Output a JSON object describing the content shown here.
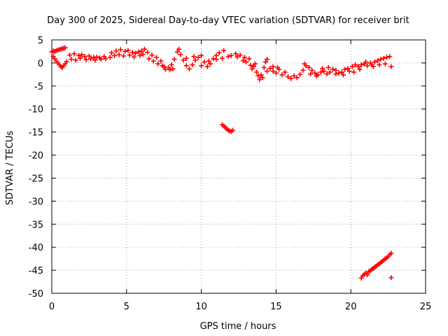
{
  "chart_data": {
    "type": "scatter",
    "title": "Day 300 of 2025, Sidereal Day-to-day VTEC variation (SDTVAR) for receiver brit",
    "xlabel": "GPS time / hours",
    "ylabel": "SDTVAR / TECUs",
    "xlim": [
      0,
      25
    ],
    "ylim": [
      -50,
      5
    ],
    "x_ticks": [
      "0",
      "5",
      "10",
      "15",
      "20",
      "25"
    ],
    "y_ticks": [
      "5",
      "0",
      "-5",
      "-10",
      "-15",
      "-20",
      "-25",
      "-30",
      "-35",
      "-40",
      "-45",
      "-50"
    ],
    "grid": true,
    "marker": "+",
    "series_color": "#ff0000",
    "series": [
      {
        "points": [
          [
            0.0,
            2.4
          ],
          [
            0.1,
            2.6
          ],
          [
            0.2,
            2.5
          ],
          [
            0.3,
            2.7
          ],
          [
            0.4,
            2.8
          ],
          [
            0.5,
            2.9
          ],
          [
            0.6,
            3.0
          ],
          [
            0.7,
            3.1
          ],
          [
            0.8,
            3.2
          ],
          [
            0.9,
            3.3
          ],
          [
            0.1,
            1.4
          ],
          [
            0.2,
            0.9
          ],
          [
            0.3,
            0.4
          ],
          [
            0.4,
            0.0
          ],
          [
            0.5,
            -0.4
          ],
          [
            0.6,
            -0.8
          ],
          [
            0.7,
            -1.0
          ],
          [
            0.8,
            -0.6
          ],
          [
            0.9,
            -0.2
          ],
          [
            1.0,
            0.3
          ],
          [
            1.2,
            1.7
          ],
          [
            1.5,
            2.0
          ],
          [
            1.8,
            1.6
          ],
          [
            2.0,
            1.8
          ],
          [
            2.2,
            1.4
          ],
          [
            2.5,
            1.5
          ],
          [
            2.8,
            1.2
          ],
          [
            3.0,
            1.3
          ],
          [
            3.2,
            1.1
          ],
          [
            3.5,
            1.4
          ],
          [
            1.3,
            0.8
          ],
          [
            1.6,
            0.6
          ],
          [
            1.9,
            1.0
          ],
          [
            2.3,
            0.7
          ],
          [
            2.6,
            0.9
          ],
          [
            2.9,
            0.6
          ],
          [
            3.3,
            0.8
          ],
          [
            3.6,
            0.9
          ],
          [
            3.9,
            1.2
          ],
          [
            4.2,
            1.6
          ],
          [
            4.0,
            2.2
          ],
          [
            4.3,
            2.6
          ],
          [
            4.6,
            2.9
          ],
          [
            4.9,
            2.5
          ],
          [
            5.1,
            2.7
          ],
          [
            5.4,
            2.3
          ],
          [
            5.6,
            2.1
          ],
          [
            5.8,
            2.4
          ],
          [
            6.0,
            2.6
          ],
          [
            6.2,
            3.0
          ],
          [
            4.5,
            1.8
          ],
          [
            4.8,
            1.5
          ],
          [
            5.2,
            1.7
          ],
          [
            5.5,
            1.3
          ],
          [
            5.9,
            1.6
          ],
          [
            6.1,
            1.9
          ],
          [
            6.4,
            2.3
          ],
          [
            6.7,
            1.7
          ],
          [
            7.0,
            1.2
          ],
          [
            7.3,
            0.4
          ],
          [
            6.5,
            0.9
          ],
          [
            6.8,
            0.4
          ],
          [
            7.1,
            -0.2
          ],
          [
            7.4,
            -0.6
          ],
          [
            7.6,
            -1.4
          ],
          [
            7.8,
            -1.0
          ],
          [
            8.0,
            -0.4
          ],
          [
            8.2,
            0.8
          ],
          [
            8.4,
            2.4
          ],
          [
            8.5,
            3.0
          ],
          [
            7.5,
            -0.8
          ],
          [
            7.9,
            -1.5
          ],
          [
            8.1,
            -1.3
          ],
          [
            8.6,
            1.8
          ],
          [
            8.8,
            0.6
          ],
          [
            9.0,
            -0.6
          ],
          [
            9.2,
            -1.3
          ],
          [
            9.4,
            -0.4
          ],
          [
            9.6,
            0.6
          ],
          [
            9.8,
            1.2
          ],
          [
            9.0,
            1.0
          ],
          [
            9.5,
            1.4
          ],
          [
            10.0,
            1.6
          ],
          [
            10.2,
            0.2
          ],
          [
            10.4,
            -0.8
          ],
          [
            10.6,
            -0.2
          ],
          [
            10.8,
            0.9
          ],
          [
            11.0,
            1.6
          ],
          [
            11.2,
            2.2
          ],
          [
            11.5,
            2.7
          ],
          [
            10.0,
            -0.6
          ],
          [
            10.5,
            0.4
          ],
          [
            11.0,
            0.8
          ],
          [
            11.4,
            1.0
          ],
          [
            11.8,
            1.4
          ],
          [
            12.0,
            1.6
          ],
          [
            12.3,
            2.0
          ],
          [
            12.6,
            1.7
          ],
          [
            12.9,
            1.2
          ],
          [
            13.2,
            0.9
          ],
          [
            12.4,
            1.3
          ],
          [
            12.8,
            0.5
          ],
          [
            13.0,
            0.2
          ],
          [
            13.3,
            -0.5
          ],
          [
            13.5,
            -0.8
          ],
          [
            13.6,
            -0.2
          ],
          [
            13.4,
            -1.3
          ],
          [
            13.7,
            -2.0
          ],
          [
            13.8,
            -2.8
          ],
          [
            13.9,
            -3.6
          ],
          [
            14.0,
            -2.6
          ],
          [
            14.2,
            -1.0
          ],
          [
            14.3,
            0.2
          ],
          [
            14.4,
            0.8
          ],
          [
            14.1,
            -3.2
          ],
          [
            14.4,
            -1.8
          ],
          [
            14.6,
            -1.2
          ],
          [
            14.8,
            -1.8
          ],
          [
            15.0,
            -2.2
          ],
          [
            15.2,
            -1.4
          ],
          [
            14.8,
            -0.8
          ],
          [
            15.1,
            -1.0
          ],
          [
            15.4,
            -2.6
          ],
          [
            15.6,
            -2.0
          ],
          [
            15.8,
            -3.0
          ],
          [
            16.0,
            -3.4
          ],
          [
            16.2,
            -2.8
          ],
          [
            16.4,
            -3.2
          ],
          [
            16.6,
            -2.5
          ],
          [
            16.8,
            -1.6
          ],
          [
            16.9,
            -0.2
          ],
          [
            17.0,
            -0.6
          ],
          [
            17.2,
            -1.0
          ],
          [
            17.4,
            -1.6
          ],
          [
            17.6,
            -2.2
          ],
          [
            17.8,
            -2.6
          ],
          [
            18.0,
            -2.0
          ],
          [
            18.2,
            -1.8
          ],
          [
            18.4,
            -2.4
          ],
          [
            18.6,
            -2.0
          ],
          [
            17.3,
            -2.4
          ],
          [
            17.7,
            -2.8
          ],
          [
            18.1,
            -1.2
          ],
          [
            18.5,
            -1.0
          ],
          [
            18.8,
            -1.4
          ],
          [
            19.0,
            -1.6
          ],
          [
            19.2,
            -2.2
          ],
          [
            19.4,
            -2.0
          ],
          [
            19.6,
            -1.4
          ],
          [
            19.8,
            -1.2
          ],
          [
            19.0,
            -2.4
          ],
          [
            19.5,
            -2.6
          ],
          [
            19.9,
            -1.8
          ],
          [
            20.1,
            -0.8
          ],
          [
            20.3,
            -0.4
          ],
          [
            20.5,
            -0.8
          ],
          [
            20.7,
            -0.4
          ],
          [
            20.9,
            -0.2
          ],
          [
            21.1,
            -0.6
          ],
          [
            21.3,
            0.0
          ],
          [
            20.2,
            -2.0
          ],
          [
            20.6,
            -1.4
          ],
          [
            21.0,
            0.2
          ],
          [
            21.4,
            -0.4
          ],
          [
            21.6,
            0.2
          ],
          [
            21.8,
            0.5
          ],
          [
            22.0,
            0.8
          ],
          [
            22.2,
            1.0
          ],
          [
            22.4,
            1.2
          ],
          [
            22.6,
            1.4
          ],
          [
            21.5,
            -0.8
          ],
          [
            21.9,
            -0.4
          ],
          [
            22.3,
            -0.2
          ],
          [
            22.7,
            -0.8
          ],
          [
            11.4,
            -13.4
          ],
          [
            11.5,
            -13.7
          ],
          [
            11.6,
            -14.0
          ],
          [
            11.7,
            -14.3
          ],
          [
            11.8,
            -14.6
          ],
          [
            11.9,
            -14.8
          ],
          [
            12.0,
            -14.9
          ],
          [
            12.1,
            -14.6
          ],
          [
            20.7,
            -46.7
          ],
          [
            20.8,
            -46.2
          ],
          [
            20.9,
            -45.9
          ],
          [
            21.0,
            -45.6
          ],
          [
            21.1,
            -46.0
          ],
          [
            21.2,
            -45.3
          ],
          [
            21.3,
            -45.1
          ],
          [
            21.4,
            -44.8
          ],
          [
            21.5,
            -44.6
          ],
          [
            21.6,
            -44.3
          ],
          [
            21.7,
            -44.1
          ],
          [
            21.8,
            -43.8
          ],
          [
            21.9,
            -43.6
          ],
          [
            22.0,
            -43.3
          ],
          [
            22.1,
            -43.1
          ],
          [
            22.2,
            -42.8
          ],
          [
            22.3,
            -42.5
          ],
          [
            22.4,
            -42.3
          ],
          [
            22.5,
            -42.0
          ],
          [
            22.6,
            -41.6
          ],
          [
            22.7,
            -41.3
          ],
          [
            22.7,
            -46.6
          ]
        ]
      }
    ]
  }
}
